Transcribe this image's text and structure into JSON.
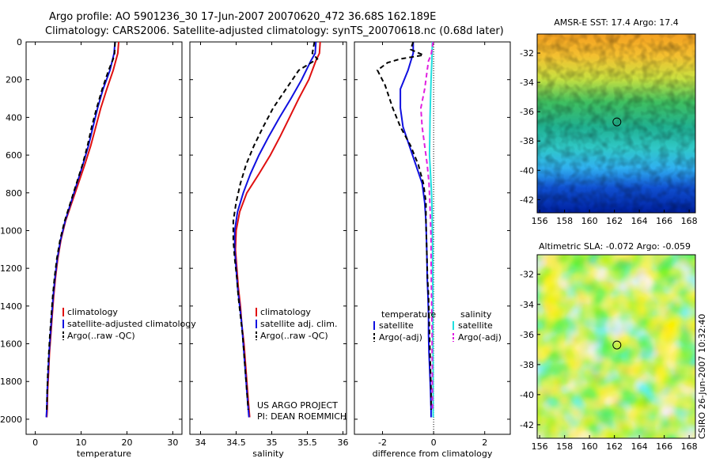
{
  "header": {
    "line1": "Argo profile: AO 5901236_30 17-Jun-2007 20070620_472 36.68S 162.189E",
    "line2": "Climatology: CARS2006. Satellite-adjusted climatology: synTS_20070618.nc (0.68d later)"
  },
  "colors": {
    "climatology": "#e01010",
    "satellite": "#1010e0",
    "argo": "#000000",
    "salinity_satellite": "#20e0e0",
    "salinity_argo": "#e020e0",
    "zero_line": "#000000"
  },
  "depth_axis": {
    "ticks": [
      "0",
      "200",
      "400",
      "600",
      "800",
      "1000",
      "1200",
      "1400",
      "1600",
      "1800",
      "2000"
    ],
    "ylim": [
      0,
      2080
    ]
  },
  "credits": {
    "line1": "US ARGO PROJECT",
    "line2": "PI: DEAN ROEMMICH"
  },
  "timestamp": "CSIRO 26-Jun-2007 10:32:40",
  "chart_data": [
    {
      "type": "line",
      "name": "temperature-profile",
      "xlabel": "temperature",
      "ylabel": "depth",
      "xlim": [
        -2,
        32
      ],
      "xticks": [
        0,
        10,
        20,
        30
      ],
      "ylim": [
        0,
        2080
      ],
      "series": [
        {
          "name": "climatology",
          "legend": "climatology",
          "dashed": false,
          "points": [
            [
              18.2,
              0
            ],
            [
              18.0,
              60
            ],
            [
              17.0,
              150
            ],
            [
              15.6,
              250
            ],
            [
              14.3,
              350
            ],
            [
              13.2,
              450
            ],
            [
              12.1,
              550
            ],
            [
              10.8,
              650
            ],
            [
              9.4,
              750
            ],
            [
              8.0,
              850
            ],
            [
              6.6,
              950
            ],
            [
              5.6,
              1050
            ],
            [
              4.9,
              1150
            ],
            [
              4.4,
              1250
            ],
            [
              4.0,
              1350
            ],
            [
              3.7,
              1450
            ],
            [
              3.4,
              1550
            ],
            [
              3.1,
              1650
            ],
            [
              2.9,
              1750
            ],
            [
              2.7,
              1850
            ],
            [
              2.6,
              1950
            ],
            [
              2.5,
              1990
            ]
          ]
        },
        {
          "name": "satellite-adjusted climatology",
          "legend": "satellite-adjusted climatology",
          "dashed": false,
          "points": [
            [
              17.4,
              0
            ],
            [
              17.2,
              60
            ],
            [
              16.3,
              150
            ],
            [
              14.8,
              250
            ],
            [
              13.6,
              350
            ],
            [
              12.6,
              450
            ],
            [
              11.6,
              550
            ],
            [
              10.4,
              650
            ],
            [
              9.1,
              750
            ],
            [
              7.8,
              850
            ],
            [
              6.5,
              950
            ],
            [
              5.5,
              1050
            ],
            [
              4.8,
              1150
            ],
            [
              4.3,
              1250
            ],
            [
              3.9,
              1350
            ],
            [
              3.6,
              1450
            ],
            [
              3.3,
              1550
            ],
            [
              3.0,
              1650
            ],
            [
              2.8,
              1750
            ],
            [
              2.6,
              1850
            ],
            [
              2.5,
              1950
            ],
            [
              2.4,
              1990
            ]
          ]
        },
        {
          "name": "Argo(..raw -QC)",
          "legend": "Argo(..raw -QC)",
          "dashed": true,
          "points": [
            [
              17.4,
              0
            ],
            [
              17.3,
              60
            ],
            [
              17.0,
              90
            ],
            [
              16.0,
              150
            ],
            [
              14.6,
              250
            ],
            [
              13.4,
              350
            ],
            [
              12.3,
              450
            ],
            [
              11.4,
              550
            ],
            [
              10.3,
              650
            ],
            [
              9.0,
              750
            ],
            [
              7.7,
              850
            ],
            [
              6.4,
              950
            ],
            [
              5.4,
              1050
            ],
            [
              4.7,
              1150
            ],
            [
              4.2,
              1250
            ],
            [
              3.8,
              1350
            ],
            [
              3.5,
              1450
            ],
            [
              3.2,
              1550
            ],
            [
              2.95,
              1650
            ],
            [
              2.75,
              1750
            ],
            [
              2.6,
              1850
            ],
            [
              2.5,
              1950
            ]
          ]
        }
      ]
    },
    {
      "type": "line",
      "name": "salinity-profile",
      "xlabel": "salinity",
      "ylabel": "depth",
      "xlim": [
        33.85,
        36.05
      ],
      "xticks": [
        34,
        34.5,
        35,
        35.5,
        36
      ],
      "ylim": [
        0,
        2080
      ],
      "series": [
        {
          "name": "climatology",
          "legend": "climatology",
          "dashed": false,
          "points": [
            [
              35.68,
              0
            ],
            [
              35.67,
              60
            ],
            [
              35.62,
              100
            ],
            [
              35.52,
              200
            ],
            [
              35.38,
              300
            ],
            [
              35.25,
              400
            ],
            [
              35.12,
              500
            ],
            [
              34.98,
              600
            ],
            [
              34.82,
              700
            ],
            [
              34.65,
              800
            ],
            [
              34.55,
              900
            ],
            [
              34.5,
              1000
            ],
            [
              34.49,
              1100
            ],
            [
              34.51,
              1200
            ],
            [
              34.53,
              1300
            ],
            [
              34.56,
              1400
            ],
            [
              34.58,
              1500
            ],
            [
              34.61,
              1600
            ],
            [
              34.63,
              1700
            ],
            [
              34.65,
              1800
            ],
            [
              34.67,
              1900
            ],
            [
              34.69,
              1990
            ]
          ]
        },
        {
          "name": "satellite adj. clim.",
          "legend": "satellite adj. clim.",
          "dashed": false,
          "points": [
            [
              35.62,
              0
            ],
            [
              35.61,
              60
            ],
            [
              35.55,
              100
            ],
            [
              35.42,
              200
            ],
            [
              35.27,
              300
            ],
            [
              35.11,
              400
            ],
            [
              34.96,
              500
            ],
            [
              34.82,
              600
            ],
            [
              34.7,
              700
            ],
            [
              34.6,
              800
            ],
            [
              34.52,
              900
            ],
            [
              34.48,
              1000
            ],
            [
              34.48,
              1100
            ],
            [
              34.5,
              1200
            ],
            [
              34.52,
              1300
            ],
            [
              34.55,
              1400
            ],
            [
              34.58,
              1500
            ],
            [
              34.6,
              1600
            ],
            [
              34.62,
              1700
            ],
            [
              34.64,
              1800
            ],
            [
              34.66,
              1900
            ],
            [
              34.68,
              1990
            ]
          ]
        },
        {
          "name": "Argo(..raw -QC)",
          "legend": "Argo(..raw -QC)",
          "dashed": true,
          "points": [
            [
              35.6,
              0
            ],
            [
              35.57,
              60
            ],
            [
              35.64,
              90
            ],
            [
              35.38,
              150
            ],
            [
              35.2,
              250
            ],
            [
              35.02,
              350
            ],
            [
              34.88,
              450
            ],
            [
              34.75,
              550
            ],
            [
              34.64,
              650
            ],
            [
              34.56,
              750
            ],
            [
              34.5,
              850
            ],
            [
              34.46,
              950
            ],
            [
              34.46,
              1050
            ],
            [
              34.48,
              1150
            ],
            [
              34.51,
              1250
            ],
            [
              34.53,
              1350
            ],
            [
              34.56,
              1450
            ],
            [
              34.59,
              1550
            ],
            [
              34.61,
              1650
            ],
            [
              34.63,
              1750
            ],
            [
              34.65,
              1850
            ],
            [
              34.67,
              1950
            ]
          ]
        }
      ]
    },
    {
      "type": "line",
      "name": "difference-from-climatology",
      "xlabel": "difference from climatology",
      "ylabel": "depth",
      "xlim": [
        -3.1,
        3.0
      ],
      "xticks": [
        -2,
        0,
        2
      ],
      "ylim": [
        0,
        2080
      ],
      "legend_headers": {
        "temperature": "temperature",
        "salinity": "salinity"
      },
      "series": [
        {
          "name": "temperature satellite",
          "group": "temperature",
          "legend": "satellite",
          "dashed": false,
          "points": [
            [
              -0.8,
              0
            ],
            [
              -0.8,
              60
            ],
            [
              -1.0,
              150
            ],
            [
              -1.3,
              250
            ],
            [
              -1.3,
              350
            ],
            [
              -1.2,
              450
            ],
            [
              -0.95,
              550
            ],
            [
              -0.7,
              650
            ],
            [
              -0.45,
              750
            ],
            [
              -0.35,
              850
            ],
            [
              -0.3,
              950
            ],
            [
              -0.28,
              1050
            ],
            [
              -0.26,
              1150
            ],
            [
              -0.25,
              1250
            ],
            [
              -0.22,
              1350
            ],
            [
              -0.2,
              1450
            ],
            [
              -0.2,
              1550
            ],
            [
              -0.18,
              1650
            ],
            [
              -0.15,
              1750
            ],
            [
              -0.12,
              1850
            ],
            [
              -0.1,
              1950
            ],
            [
              -0.1,
              1990
            ]
          ]
        },
        {
          "name": "temperature Argo(-adj)",
          "group": "temperature",
          "legend": "Argo(-adj)",
          "dashed": true,
          "points": [
            [
              -0.8,
              0
            ],
            [
              -0.9,
              40
            ],
            [
              -0.4,
              70
            ],
            [
              -1.3,
              90
            ],
            [
              -1.8,
              110
            ],
            [
              -2.2,
              150
            ],
            [
              -1.9,
              230
            ],
            [
              -1.6,
              350
            ],
            [
              -1.3,
              450
            ],
            [
              -0.9,
              550
            ],
            [
              -0.6,
              650
            ],
            [
              -0.4,
              750
            ],
            [
              -0.3,
              850
            ],
            [
              -0.3,
              950
            ],
            [
              -0.28,
              1050
            ],
            [
              -0.26,
              1150
            ],
            [
              -0.24,
              1250
            ],
            [
              -0.2,
              1350
            ],
            [
              -0.18,
              1450
            ],
            [
              -0.16,
              1550
            ],
            [
              -0.14,
              1650
            ],
            [
              -0.12,
              1750
            ],
            [
              -0.1,
              1850
            ],
            [
              -0.1,
              1950
            ]
          ]
        },
        {
          "name": "salinity satellite",
          "group": "salinity",
          "legend": "satellite",
          "dashed": false,
          "points": [
            [
              -0.05,
              0
            ],
            [
              -0.06,
              60
            ],
            [
              -0.07,
              100
            ],
            [
              -0.1,
              200
            ],
            [
              -0.12,
              300
            ],
            [
              -0.14,
              400
            ],
            [
              -0.15,
              500
            ],
            [
              -0.16,
              600
            ],
            [
              -0.12,
              700
            ],
            [
              -0.08,
              800
            ],
            [
              -0.06,
              900
            ],
            [
              -0.05,
              1000
            ],
            [
              -0.04,
              1100
            ],
            [
              -0.04,
              1200
            ],
            [
              -0.03,
              1300
            ],
            [
              -0.03,
              1400
            ],
            [
              -0.03,
              1500
            ],
            [
              -0.03,
              1600
            ],
            [
              -0.02,
              1700
            ],
            [
              -0.02,
              1800
            ],
            [
              -0.02,
              1900
            ],
            [
              -0.02,
              1990
            ]
          ]
        },
        {
          "name": "salinity Argo(-adj)",
          "group": "salinity",
          "legend": "Argo(-adj)",
          "dashed": true,
          "points": [
            [
              -0.02,
              0
            ],
            [
              -0.1,
              70
            ],
            [
              -0.2,
              100
            ],
            [
              -0.25,
              150
            ],
            [
              -0.35,
              250
            ],
            [
              -0.5,
              350
            ],
            [
              -0.45,
              450
            ],
            [
              -0.35,
              550
            ],
            [
              -0.25,
              650
            ],
            [
              -0.18,
              750
            ],
            [
              -0.15,
              850
            ],
            [
              -0.12,
              950
            ],
            [
              -0.1,
              1050
            ],
            [
              -0.1,
              1150
            ],
            [
              -0.09,
              1250
            ],
            [
              -0.08,
              1350
            ],
            [
              -0.07,
              1450
            ],
            [
              -0.06,
              1550
            ],
            [
              -0.06,
              1650
            ],
            [
              -0.05,
              1750
            ],
            [
              -0.05,
              1850
            ],
            [
              -0.04,
              1950
            ]
          ]
        }
      ]
    },
    {
      "type": "heatmap",
      "name": "sst-map",
      "title": "AMSR-E SST: 17.4 Argo: 17.4",
      "xlim": [
        155.8,
        168.5
      ],
      "ylim": [
        -42.9,
        -30.7
      ],
      "xticks": [
        156,
        158,
        160,
        162,
        164,
        166,
        168
      ],
      "yticks": [
        -32,
        -34,
        -36,
        -38,
        -40,
        -42
      ],
      "marker": [
        162.2,
        -36.7
      ]
    },
    {
      "type": "heatmap",
      "name": "sla-map",
      "title": "Altimetric SLA: -0.072 Argo: -0.059",
      "xlim": [
        155.8,
        168.5
      ],
      "ylim": [
        -42.9,
        -30.7
      ],
      "xticks": [
        156,
        158,
        160,
        162,
        164,
        166,
        168
      ],
      "yticks": [
        -32,
        -34,
        -36,
        -38,
        -40,
        -42
      ],
      "marker": [
        162.2,
        -36.7
      ]
    }
  ]
}
